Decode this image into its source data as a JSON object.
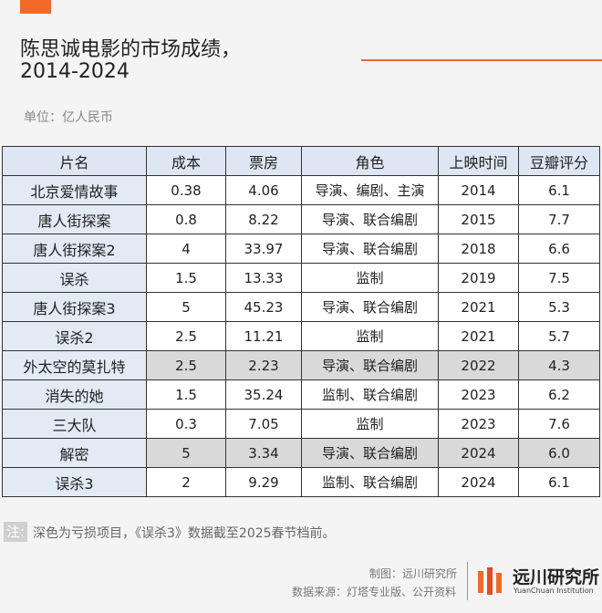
{
  "header": {
    "title_lines": [
      "陈思诚电影的市场成绩，",
      "2014-2024"
    ],
    "unit": "单位：亿人民币"
  },
  "table": {
    "columns": [
      "片名",
      "成本",
      "票房",
      "角色",
      "上映时间",
      "豆瓣评分"
    ],
    "rows": [
      [
        "北京爱情故事",
        "0.38",
        "4.06",
        "导演、编剧、主演",
        "2014",
        "6.1"
      ],
      [
        "唐人街探案",
        "0.8",
        "8.22",
        "导演、联合编剧",
        "2015",
        "7.7"
      ],
      [
        "唐人街探案2",
        "4",
        "33.97",
        "导演、联合编剧",
        "2018",
        "6.6"
      ],
      [
        "误杀",
        "1.5",
        "13.33",
        "监制",
        "2019",
        "7.5"
      ],
      [
        "唐人街探案3",
        "5",
        "45.23",
        "导演、联合编剧",
        "2021",
        "5.3"
      ],
      [
        "误杀2",
        "2.5",
        "11.21",
        "监制",
        "2021",
        "5.7"
      ],
      [
        "外太空的莫扎特",
        "2.5",
        "2.23",
        "导演、联合编剧",
        "2022",
        "4.3"
      ],
      [
        "消失的她",
        "1.5",
        "35.24",
        "监制、联合编剧",
        "2023",
        "6.2"
      ],
      [
        "三大队",
        "0.3",
        "7.05",
        "监制",
        "2023",
        "7.6"
      ],
      [
        "解密",
        "5",
        "3.34",
        "导演、联合编剧",
        "2024",
        "6.0"
      ],
      [
        "误杀3",
        "2",
        "9.29",
        "监制、联合编剧",
        "2024",
        "6.1"
      ]
    ],
    "highlighted_rows": [
      6,
      9
    ],
    "highlight_color": "#d9d9d9"
  },
  "note": {
    "label": "注:",
    "text": "深色为亏损项目，《误杀3》数据截至2025春节档前。"
  },
  "footer": {
    "credit": "制图：远川研究所",
    "source": "数据来源：灯塔专业版、公开资料",
    "brand": "远川研究所",
    "brand_en": "YuanChuan Institution"
  }
}
